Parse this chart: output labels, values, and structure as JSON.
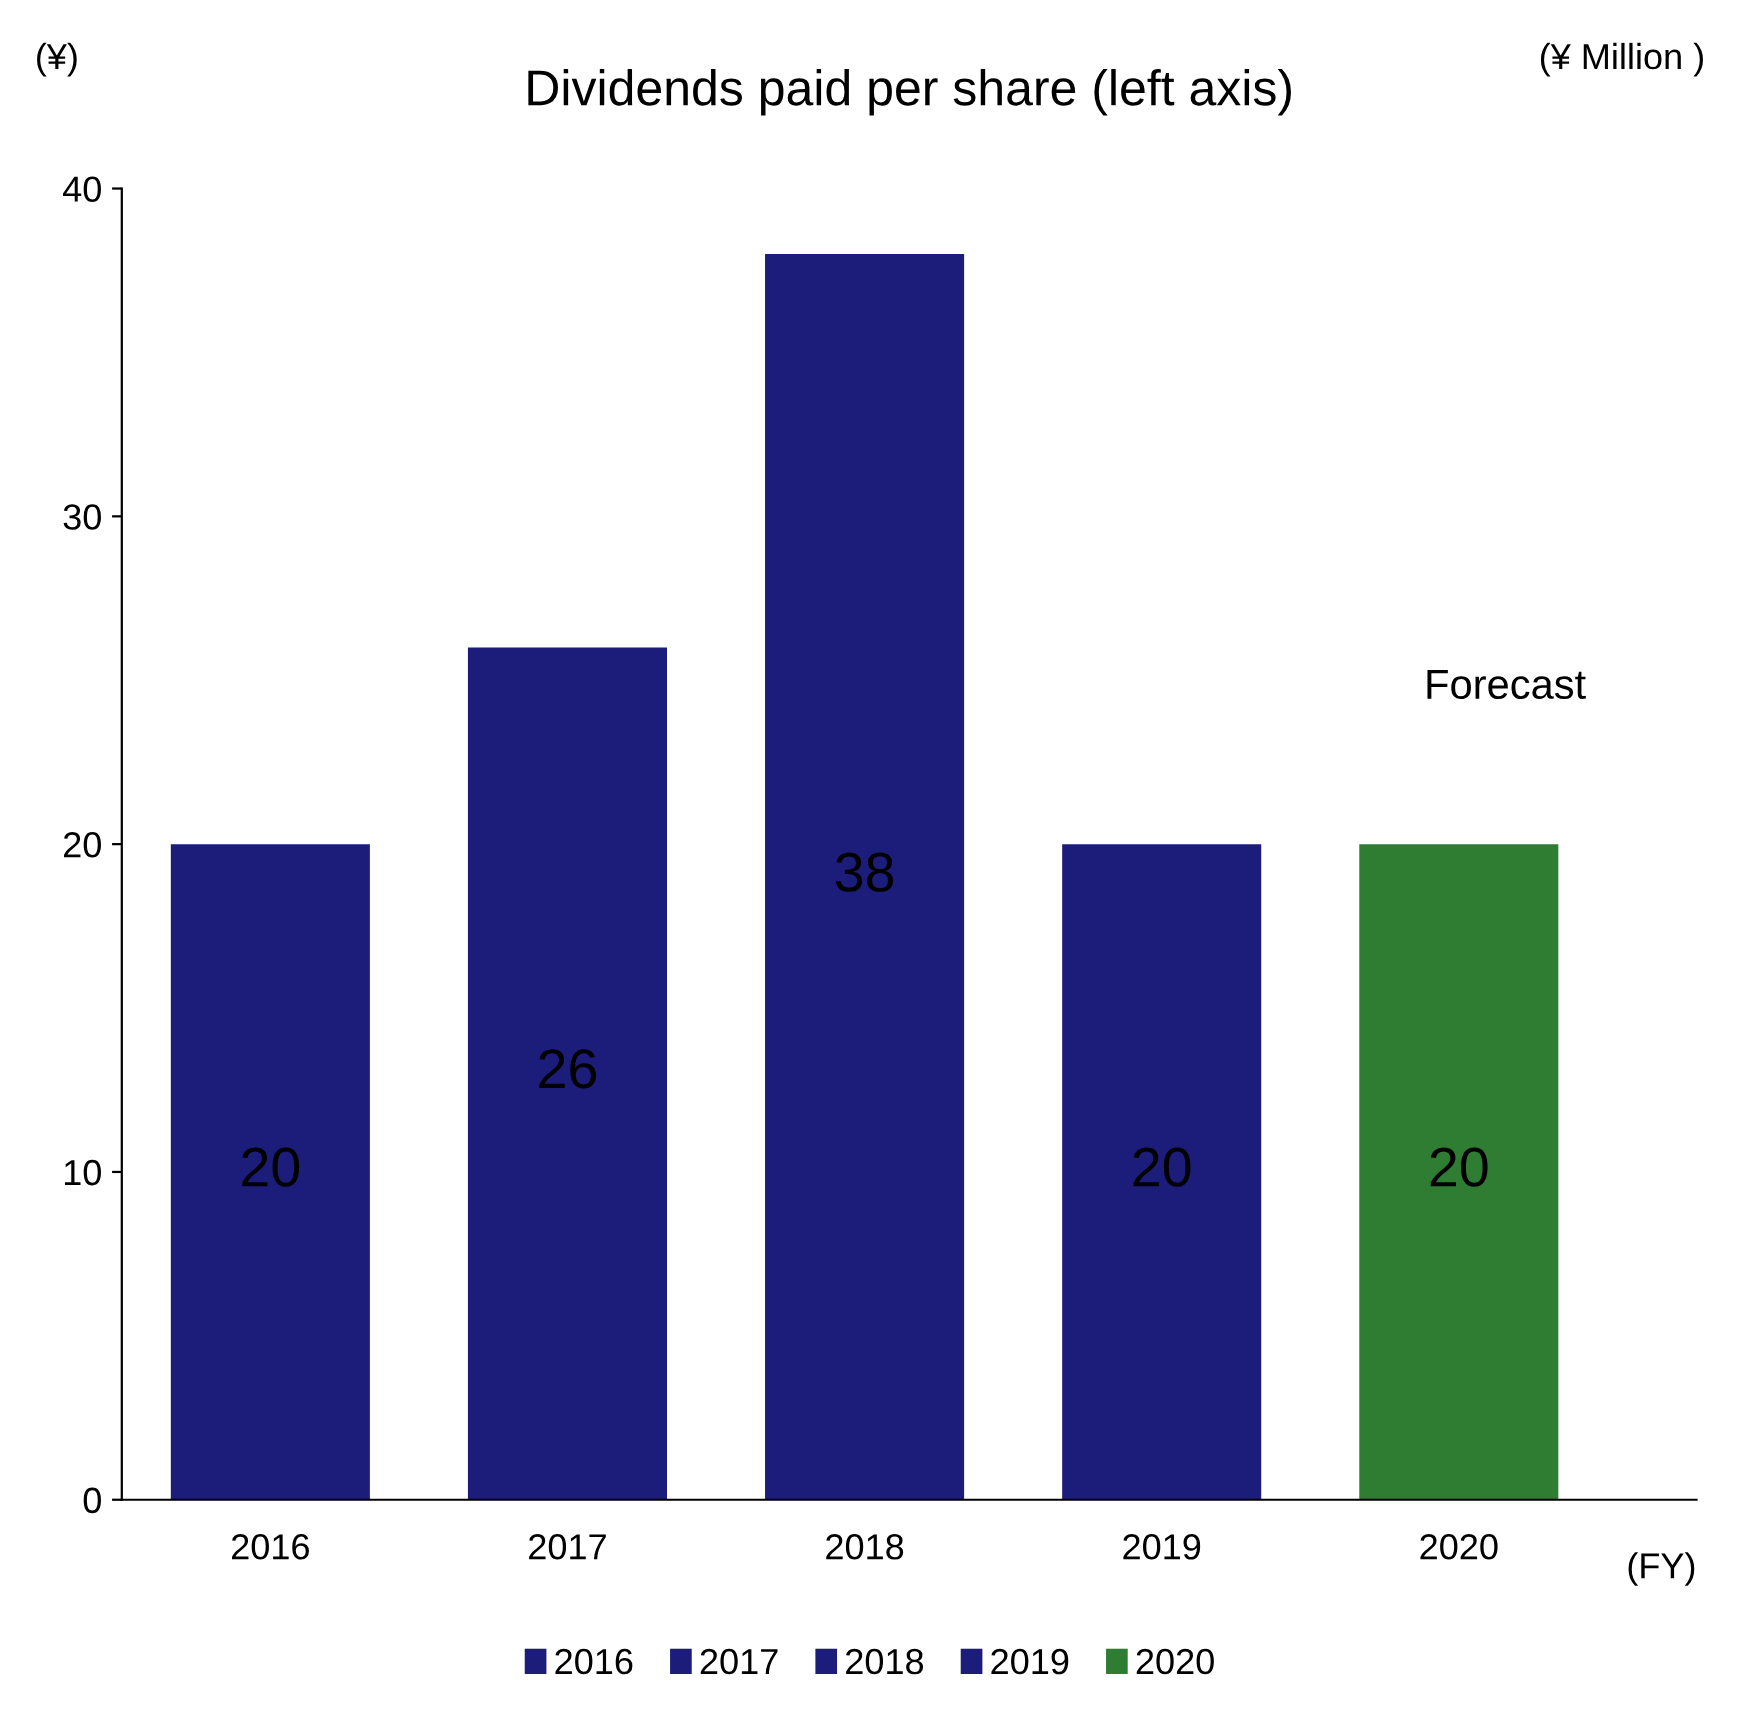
{
  "chart_data": {
    "type": "bar",
    "title": "Dividends paid per share (left axis)",
    "ylabel": "(¥)",
    "xlabel": "(FY)",
    "annotations": [
      "(¥ Million )",
      "Forecast"
    ],
    "categories": [
      "2016",
      "2017",
      "2018",
      "2019",
      "2020"
    ],
    "series": [
      {
        "name": "2016",
        "color": "#1c1c7a",
        "values": [
          20,
          null,
          null,
          null,
          null
        ]
      },
      {
        "name": "2017",
        "color": "#1c1c7a",
        "values": [
          null,
          26,
          null,
          null,
          null
        ]
      },
      {
        "name": "2018",
        "color": "#1c1c7a",
        "values": [
          null,
          null,
          38,
          null,
          null
        ]
      },
      {
        "name": "2019",
        "color": "#1c1c7a",
        "values": [
          null,
          null,
          null,
          20,
          null
        ]
      },
      {
        "name": "2020",
        "color": "#2e7d32",
        "values": [
          null,
          null,
          null,
          null,
          20
        ]
      }
    ],
    "ylim": [
      0,
      40
    ],
    "yticks": [
      0,
      10,
      20,
      30,
      40
    ],
    "data_labels": true,
    "legend": "bottom",
    "grid": false
  }
}
